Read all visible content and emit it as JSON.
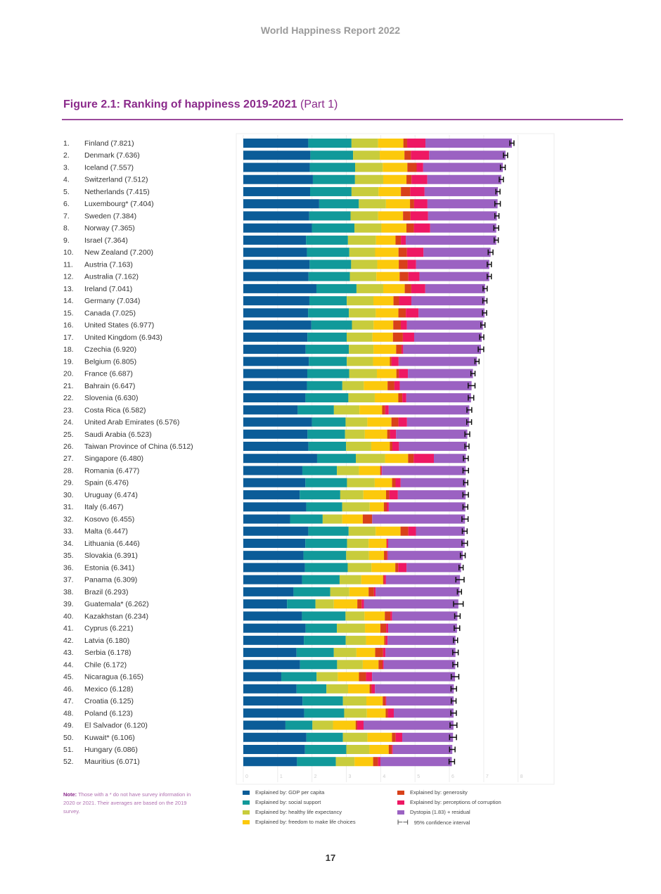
{
  "header": {
    "report_title": "World Happiness Report 2022"
  },
  "figure": {
    "title_bold": "Figure 2.1: Ranking of happiness 2019-2021",
    "title_part": "(Part 1)"
  },
  "note": {
    "label": "Note:",
    "text": "Those with a * do not have survey information in 2020 or 2021. Their averages are based on the 2019 survey."
  },
  "page_number": "17",
  "chart_data": {
    "type": "bar",
    "orientation": "horizontal",
    "stacked": true,
    "xlim": [
      0,
      8
    ],
    "xticks": [
      "0",
      "1",
      "2",
      "3",
      "4",
      "5",
      "6",
      "7",
      "8"
    ],
    "grid": true,
    "legend_placement": "bottom",
    "components": [
      {
        "name": "Explained by: GDP per capita",
        "color": "#0b5c98"
      },
      {
        "name": "Explained by: social support",
        "color": "#11999a"
      },
      {
        "name": "Explained by: healthy life expectancy",
        "color": "#c8cc3c"
      },
      {
        "name": "Explained by: freedom to make life choices",
        "color": "#fcc90c"
      },
      {
        "name": "Explained by: generosity",
        "color": "#d8411a"
      },
      {
        "name": "Explained by: perceptions of corruption",
        "color": "#ee1863"
      },
      {
        "name": "Dystopia (1.83) + residual",
        "color": "#9b62c2"
      }
    ],
    "ci_label": "95% confidence interval",
    "rows": [
      [
        "1.",
        "Finland",
        7.821,
        [
          1.892,
          1.258,
          0.775,
          0.736,
          0.109,
          0.534
        ],
        0.06
      ],
      [
        "2.",
        "Denmark",
        7.636,
        [
          1.953,
          1.243,
          0.777,
          0.719,
          0.188,
          0.532
        ],
        0.06
      ],
      [
        "3.",
        "Iceland",
        7.557,
        [
          1.936,
          1.32,
          0.803,
          0.718,
          0.27,
          0.191
        ],
        0.07
      ],
      [
        "4.",
        "Switzerland",
        7.512,
        [
          2.026,
          1.226,
          0.822,
          0.677,
          0.147,
          0.461
        ],
        0.06
      ],
      [
        "5.",
        "Netherlands",
        7.415,
        [
          1.945,
          1.206,
          0.787,
          0.651,
          0.271,
          0.419
        ],
        0.06
      ],
      [
        "6.",
        "Luxembourg*",
        7.404,
        [
          2.209,
          1.155,
          0.79,
          0.7,
          0.12,
          0.388
        ],
        0.08
      ],
      [
        "7.",
        "Sweden",
        7.384,
        [
          1.92,
          1.204,
          0.803,
          0.724,
          0.218,
          0.512
        ],
        0.06
      ],
      [
        "8.",
        "Norway",
        7.365,
        [
          1.997,
          1.239,
          0.786,
          0.728,
          0.217,
          0.474
        ],
        0.07
      ],
      [
        "9.",
        "Israel",
        7.364,
        [
          1.826,
          1.221,
          0.818,
          0.568,
          0.155,
          0.143
        ],
        0.06
      ],
      [
        "10.",
        "New Zealand",
        7.2,
        [
          1.852,
          1.235,
          0.752,
          0.68,
          0.245,
          0.483
        ],
        0.07
      ],
      [
        "11.",
        "Austria",
        7.163,
        [
          1.931,
          1.209,
          0.761,
          0.626,
          0.255,
          0.25
        ],
        0.06
      ],
      [
        "12.",
        "Australia",
        7.162,
        [
          1.9,
          1.203,
          0.771,
          0.677,
          0.256,
          0.321
        ],
        0.06
      ],
      [
        "13.",
        "Ireland",
        7.041,
        [
          2.129,
          1.166,
          0.779,
          0.627,
          0.19,
          0.408
        ],
        0.06
      ],
      [
        "14.",
        "Germany",
        7.034,
        [
          1.924,
          1.088,
          0.776,
          0.585,
          0.163,
          0.358
        ],
        0.06
      ],
      [
        "15.",
        "Canada",
        7.025,
        [
          1.886,
          1.188,
          0.783,
          0.659,
          0.217,
          0.368
        ],
        0.06
      ],
      [
        "16.",
        "United States",
        6.977,
        [
          1.982,
          1.182,
          0.628,
          0.574,
          0.22,
          0.177
        ],
        0.06
      ],
      [
        "17.",
        "United Kingdom",
        6.943,
        [
          1.867,
          1.143,
          0.75,
          0.597,
          0.289,
          0.329
        ],
        0.06
      ],
      [
        "18.",
        "Czechia",
        6.92,
        [
          1.815,
          1.26,
          0.715,
          0.66,
          0.158,
          0.048
        ],
        0.08
      ],
      [
        "19.",
        "Belgium",
        6.805,
        [
          1.907,
          1.106,
          0.764,
          0.492,
          0.049,
          0.204
        ],
        0.06
      ],
      [
        "20.",
        "France",
        6.687,
        [
          1.863,
          1.219,
          0.808,
          0.567,
          0.07,
          0.266
        ],
        0.06
      ],
      [
        "21.",
        "Bahrain",
        6.647,
        [
          1.854,
          1.029,
          0.625,
          0.693,
          0.199,
          0.155
        ],
        0.1
      ],
      [
        "22.",
        "Slovenia",
        6.63,
        [
          1.81,
          1.249,
          0.769,
          0.685,
          0.118,
          0.115
        ],
        0.08
      ],
      [
        "23.",
        "Costa Rica",
        6.582,
        [
          1.584,
          1.054,
          0.744,
          0.661,
          0.089,
          0.102
        ],
        0.07
      ],
      [
        "24.",
        "United Arab Emirates",
        6.576,
        [
          1.998,
          0.98,
          0.633,
          0.702,
          0.204,
          0.25
        ],
        0.07
      ],
      [
        "25.",
        "Saudi Arabia",
        6.523,
        [
          1.87,
          1.092,
          0.577,
          0.651,
          0.078,
          0.18
        ],
        0.07
      ],
      [
        "26.",
        "Taiwan Province of China",
        6.512,
        [
          1.897,
          1.095,
          0.733,
          0.542,
          0.074,
          0.192
        ],
        0.06
      ],
      [
        "27.",
        "Singapore",
        6.48,
        [
          2.149,
          1.127,
          0.851,
          0.672,
          0.163,
          0.587
        ],
        0.07
      ],
      [
        "28.",
        "Romania",
        6.477,
        [
          1.719,
          1.006,
          0.645,
          0.616,
          0.03,
          0.022
        ],
        0.08
      ],
      [
        "29.",
        "Spain",
        6.476,
        [
          1.808,
          1.211,
          0.808,
          0.505,
          0.101,
          0.149
        ],
        0.06
      ],
      [
        "30.",
        "Uruguay",
        6.474,
        [
          1.643,
          1.18,
          0.672,
          0.662,
          0.094,
          0.25
        ],
        0.08
      ],
      [
        "31.",
        "Italy",
        6.467,
        [
          1.834,
          1.045,
          0.801,
          0.412,
          0.085,
          0.059
        ],
        0.07
      ],
      [
        "32.",
        "Kosovo",
        6.455,
        [
          1.362,
          0.949,
          0.569,
          0.599,
          0.273,
          0.0
        ],
        0.09
      ],
      [
        "33.",
        "Malta",
        6.447,
        [
          1.892,
          1.175,
          0.787,
          0.724,
          0.227,
          0.222
        ],
        0.07
      ],
      [
        "34.",
        "Lithuania",
        6.446,
        [
          1.806,
          1.216,
          0.628,
          0.517,
          0.012,
          0.039
        ],
        0.08
      ],
      [
        "35.",
        "Slovakia",
        6.391,
        [
          1.752,
          1.243,
          0.664,
          0.437,
          0.086,
          0.026
        ],
        0.07
      ],
      [
        "36.",
        "Estonia",
        6.341,
        [
          1.794,
          1.246,
          0.691,
          0.695,
          0.085,
          0.242
        ],
        0.06
      ],
      [
        "37.",
        "Panama",
        6.309,
        [
          1.711,
          1.093,
          0.631,
          0.634,
          0.035,
          0.05
        ],
        0.12
      ],
      [
        "38.",
        "Brazil",
        6.293,
        [
          1.462,
          1.069,
          0.556,
          0.562,
          0.156,
          0.048
        ],
        0.06
      ],
      [
        "39.",
        "Guatemala*",
        6.262,
        [
          1.274,
          0.827,
          0.536,
          0.683,
          0.126,
          0.067
        ],
        0.14
      ],
      [
        "40.",
        "Kazakhstan",
        6.234,
        [
          1.708,
          1.268,
          0.552,
          0.592,
          0.161,
          0.054
        ],
        0.08
      ],
      [
        "41.",
        "Cyprus",
        6.221,
        [
          1.815,
          0.909,
          0.819,
          0.448,
          0.167,
          0.061
        ],
        0.08
      ],
      [
        "42.",
        "Latvia",
        6.18,
        [
          1.763,
          1.219,
          0.592,
          0.531,
          0.045,
          0.051
        ],
        0.06
      ],
      [
        "43.",
        "Serbia",
        6.178,
        [
          1.55,
          1.086,
          0.658,
          0.546,
          0.23,
          0.07
        ],
        0.08
      ],
      [
        "44.",
        "Chile",
        6.172,
        [
          1.651,
          1.08,
          0.748,
          0.459,
          0.116,
          0.035
        ],
        0.07
      ],
      [
        "45.",
        "Nicaragua",
        6.165,
        [
          1.105,
          1.029,
          0.617,
          0.617,
          0.206,
          0.176
        ],
        0.11
      ],
      [
        "46.",
        "Mexico",
        6.128,
        [
          1.552,
          0.867,
          0.632,
          0.627,
          0.058,
          0.098
        ],
        0.08
      ],
      [
        "47.",
        "Croatia",
        6.125,
        [
          1.725,
          1.176,
          0.682,
          0.477,
          0.078,
          0.027
        ],
        0.07
      ],
      [
        "48.",
        "Poland",
        6.123,
        [
          1.773,
          1.164,
          0.661,
          0.548,
          0.063,
          0.173
        ],
        0.08
      ],
      [
        "49.",
        "El Salvador",
        6.12,
        [
          1.227,
          0.785,
          0.599,
          0.66,
          0.046,
          0.184
        ],
        0.1
      ],
      [
        "50.",
        "Kuwait*",
        6.106,
        [
          1.839,
          1.061,
          0.716,
          0.714,
          0.106,
          0.192
        ],
        0.1
      ],
      [
        "51.",
        "Hungary",
        6.086,
        [
          1.795,
          1.204,
          0.675,
          0.56,
          0.09,
          0.032
        ],
        0.08
      ],
      [
        "52.",
        "Mauritius",
        6.071,
        [
          1.564,
          1.13,
          0.545,
          0.541,
          0.145,
          0.067
        ],
        0.08
      ]
    ]
  }
}
